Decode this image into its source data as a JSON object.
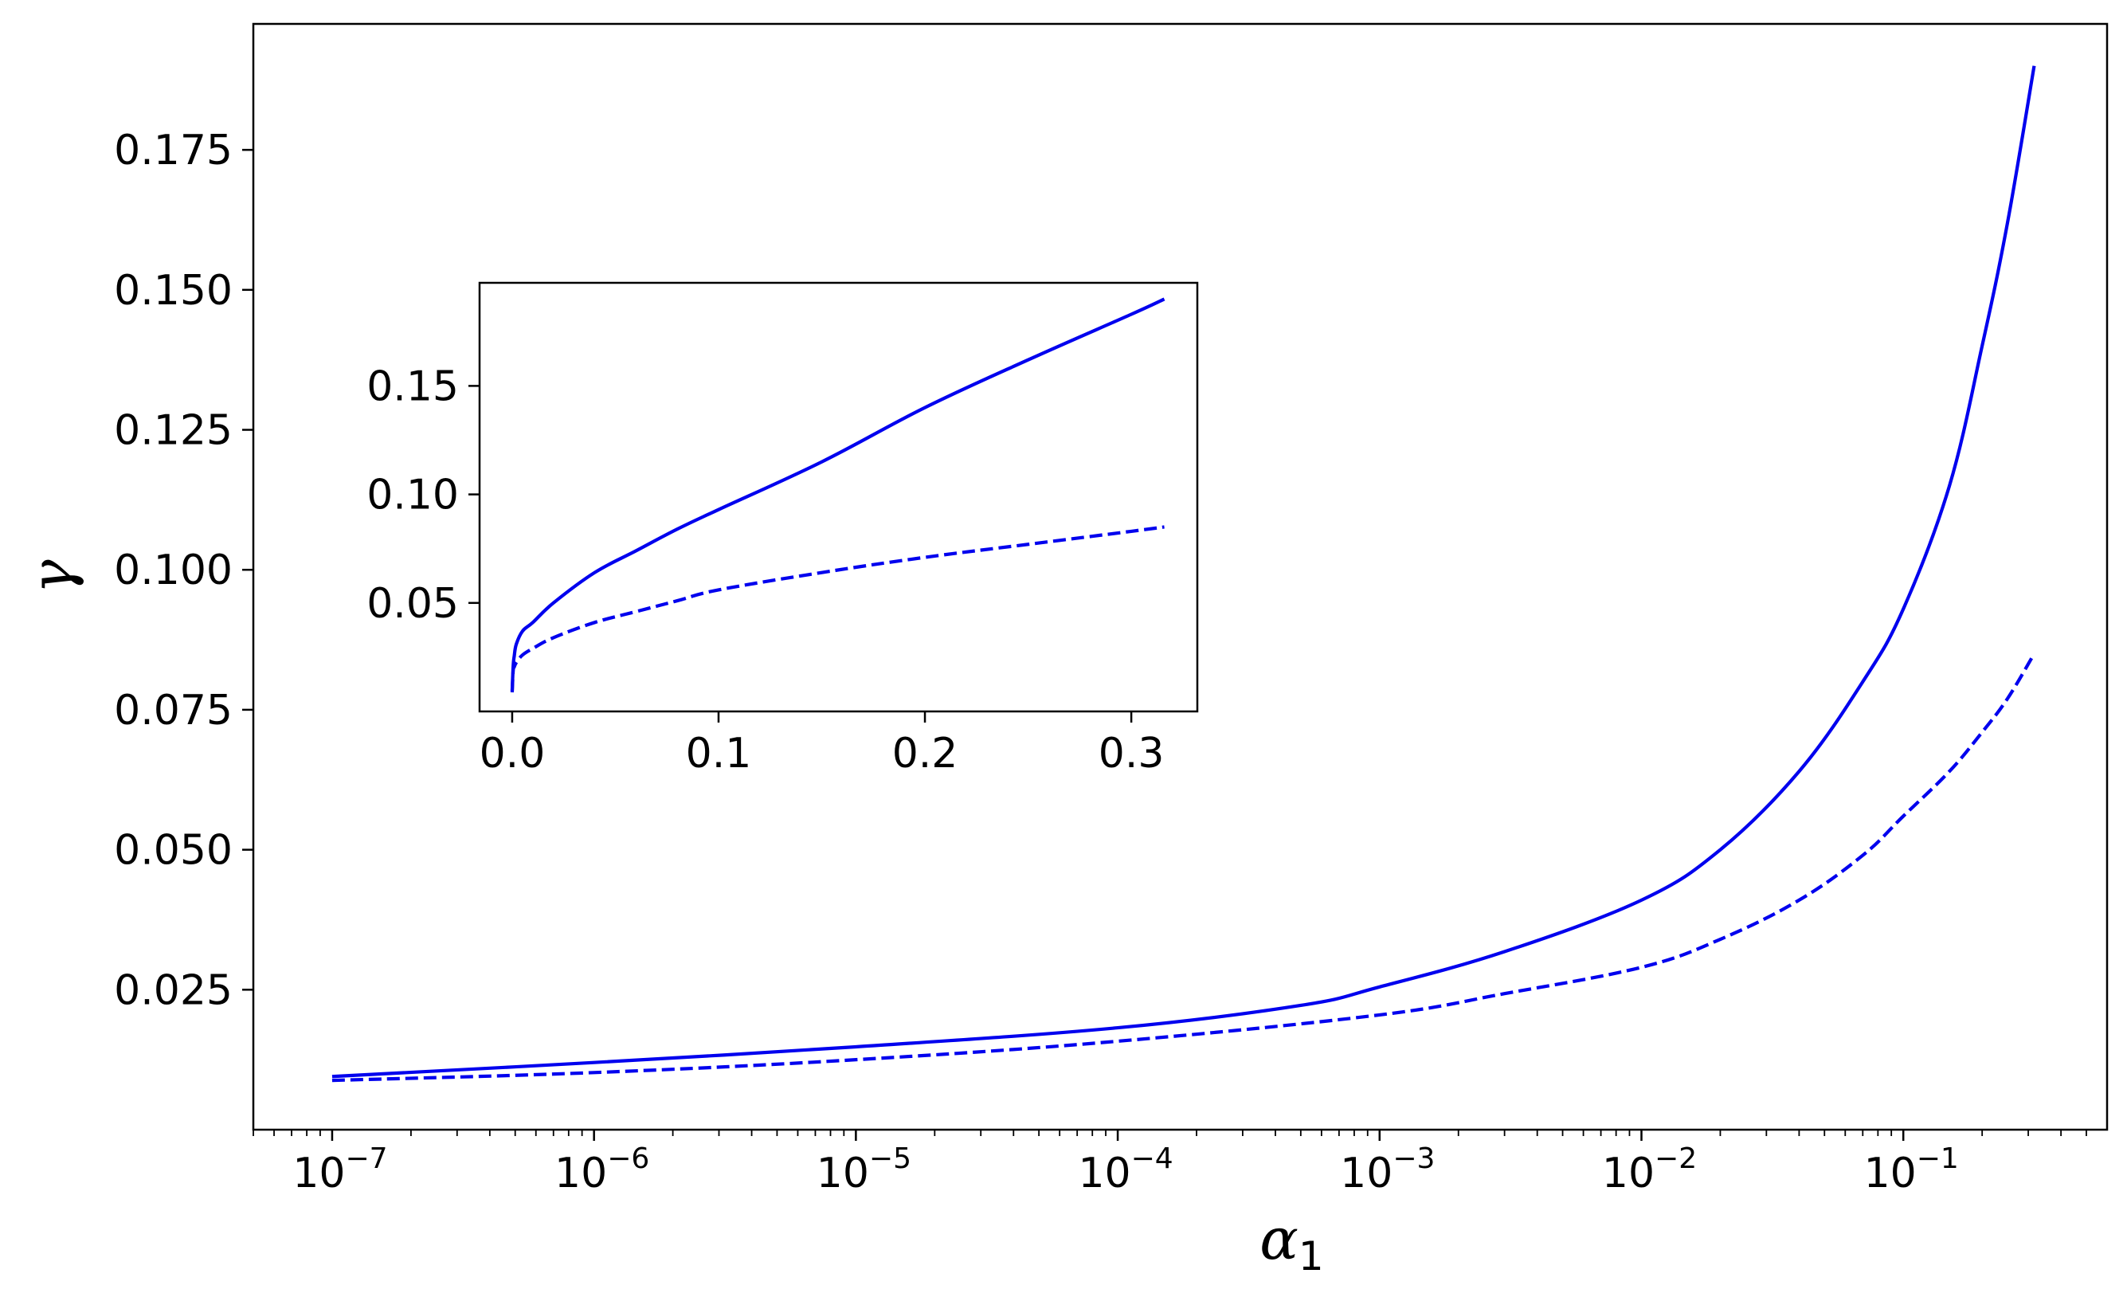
{
  "chart_data": [
    {
      "type": "line",
      "panel": "main",
      "xlabel": "α",
      "xlabel_subscript": "1",
      "ylabel": "γ",
      "xscale": "log",
      "xlim": [
        5e-08,
        0.6
      ],
      "ylim": [
        0.0,
        0.1975
      ],
      "yticks": [
        0.025,
        0.05,
        0.075,
        0.1,
        0.125,
        0.15,
        0.175
      ],
      "ytick_labels": [
        "0.025",
        "0.050",
        "0.075",
        "0.100",
        "0.125",
        "0.150",
        "0.175"
      ],
      "xtick_exponents": [
        "−7",
        "−6",
        "−5",
        "−4",
        "−3",
        "−2",
        "−1"
      ],
      "xtick_base": "10",
      "grid": false,
      "color": "#0000ee",
      "series": [
        {
          "style": "solid",
          "x": [
            1e-07,
            1e-06,
            1e-05,
            0.0001,
            0.0005,
            0.001,
            0.003,
            0.01,
            0.02,
            0.04,
            0.07,
            0.1,
            0.15,
            0.2,
            0.25,
            0.316
          ],
          "y": [
            0.0095,
            0.012,
            0.0148,
            0.0182,
            0.0222,
            0.0255,
            0.0318,
            0.041,
            0.05,
            0.064,
            0.08,
            0.093,
            0.115,
            0.14,
            0.162,
            0.19
          ]
        },
        {
          "style": "dashed",
          "x": [
            1e-07,
            1e-06,
            1e-05,
            0.0001,
            0.001,
            0.003,
            0.01,
            0.02,
            0.04,
            0.07,
            0.1,
            0.15,
            0.2,
            0.25,
            0.316
          ],
          "y": [
            0.0088,
            0.0102,
            0.0125,
            0.0158,
            0.0205,
            0.0243,
            0.029,
            0.034,
            0.041,
            0.049,
            0.056,
            0.064,
            0.071,
            0.077,
            0.085
          ]
        }
      ]
    },
    {
      "type": "line",
      "panel": "inset",
      "xscale": "linear",
      "xlim": [
        -0.0158,
        0.332
      ],
      "ylim": [
        0.0,
        0.1975
      ],
      "xticks": [
        0.0,
        0.1,
        0.2,
        0.3
      ],
      "xtick_labels": [
        "0.0",
        "0.1",
        "0.2",
        "0.3"
      ],
      "yticks": [
        0.05,
        0.1,
        0.15
      ],
      "ytick_labels": [
        "0.05",
        "0.10",
        "0.15"
      ],
      "grid": false,
      "color": "#0000ee",
      "series": [
        {
          "style": "solid",
          "x": [
            0.0,
            0.0005,
            0.001,
            0.002,
            0.005,
            0.01,
            0.02,
            0.04,
            0.06,
            0.08,
            0.1,
            0.15,
            0.2,
            0.25,
            0.3,
            0.316
          ],
          "y": [
            0.0095,
            0.021,
            0.0255,
            0.031,
            0.037,
            0.041,
            0.05,
            0.064,
            0.074,
            0.084,
            0.093,
            0.115,
            0.14,
            0.162,
            0.183,
            0.19
          ]
        },
        {
          "style": "dashed",
          "x": [
            0.0,
            0.0005,
            0.001,
            0.002,
            0.005,
            0.01,
            0.02,
            0.04,
            0.06,
            0.08,
            0.1,
            0.15,
            0.2,
            0.25,
            0.3,
            0.316
          ],
          "y": [
            0.0088,
            0.019,
            0.0205,
            0.0225,
            0.026,
            0.029,
            0.034,
            0.041,
            0.046,
            0.051,
            0.056,
            0.064,
            0.071,
            0.077,
            0.083,
            0.085
          ]
        }
      ]
    }
  ]
}
